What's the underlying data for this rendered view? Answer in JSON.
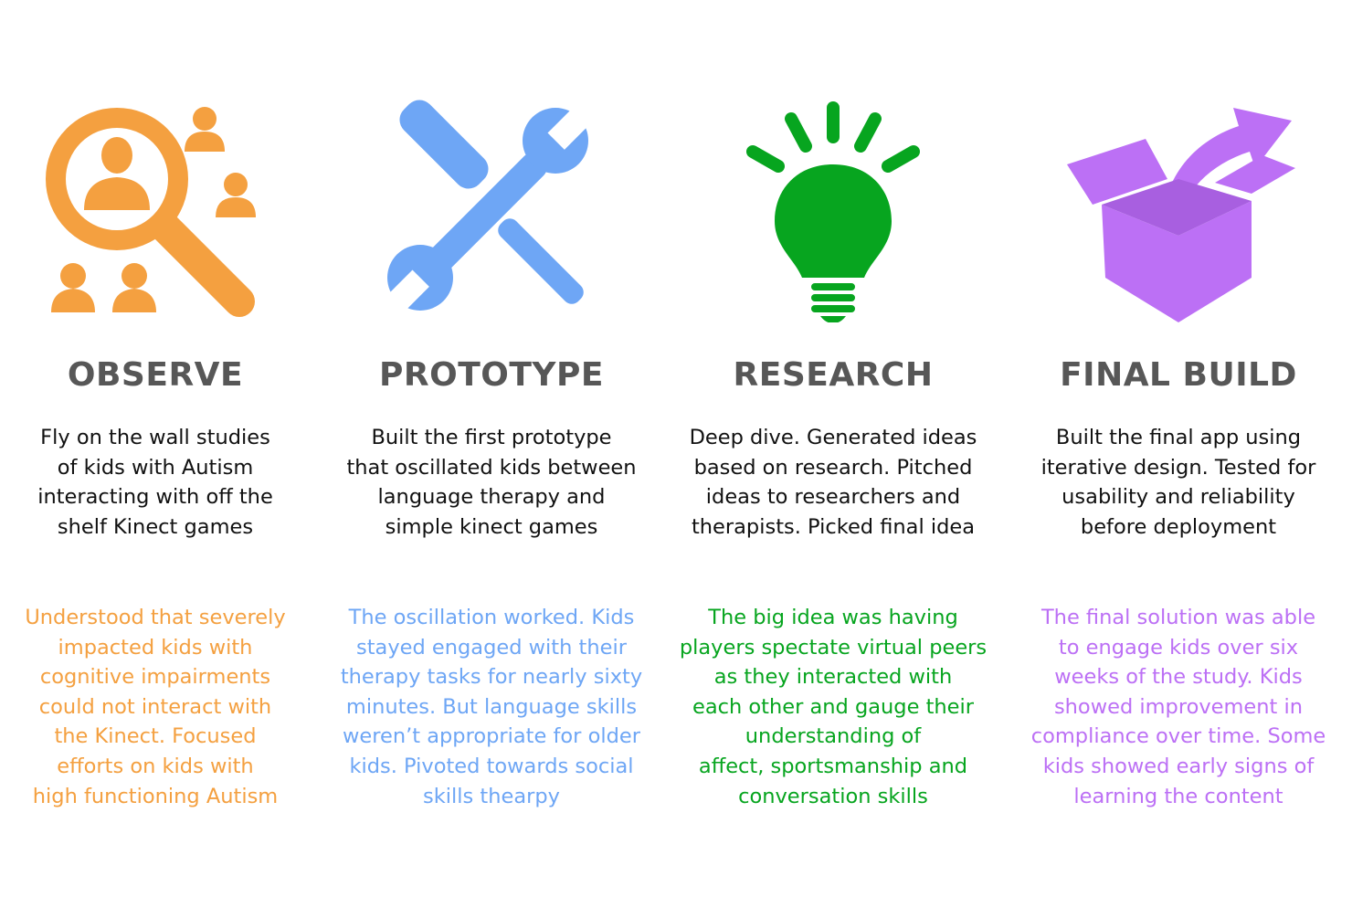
{
  "colors": {
    "observe": "#f4a040",
    "prototype": "#6ea6f5",
    "research": "#07a51f",
    "final_build": "#bc70f5",
    "title": "#575757",
    "text": "#111111"
  },
  "stages": [
    {
      "icon": "magnifier-people-icon",
      "title": "OBSERVE",
      "description": "Fly on the wall studies\nof kids with Autism\ninteracting with off the\nshelf Kinect games",
      "outcome": "Understood that severely\nimpacted kids with\ncognitive impairments\ncould not interact with\nthe Kinect. Focused\nefforts on kids with\nhigh functioning Autism"
    },
    {
      "icon": "wrench-screwdriver-icon",
      "title": "PROTOTYPE",
      "description": "Built the first prototype\nthat oscillated kids between\nlanguage therapy and\nsimple kinect games",
      "outcome": "The oscillation worked. Kids\nstayed engaged with their\ntherapy tasks for nearly sixty\nminutes. But language skills\nweren’t appropriate for older\nkids. Pivoted towards social\nskills thearpy"
    },
    {
      "icon": "lightbulb-icon",
      "title": "RESEARCH",
      "description": "Deep dive. Generated ideas\nbased on research. Pitched\nideas to researchers  and\ntherapists. Picked final idea",
      "outcome": "The big idea was having\nplayers spectate virtual peers\nas they interacted with\neach other and gauge their\nunderstanding of\naffect, sportsmanship and\nconversation skills"
    },
    {
      "icon": "open-box-arrow-icon",
      "title": "FINAL BUILD",
      "description": "Built the final app using\niterative design. Tested for\nusability and reliability\nbefore deployment",
      "outcome": "The final solution was able\nto engage kids over six\nweeks of the study. Kids\nshowed improvement in\ncompliance over time. Some\nkids showed early signs of\nlearning the content"
    }
  ]
}
